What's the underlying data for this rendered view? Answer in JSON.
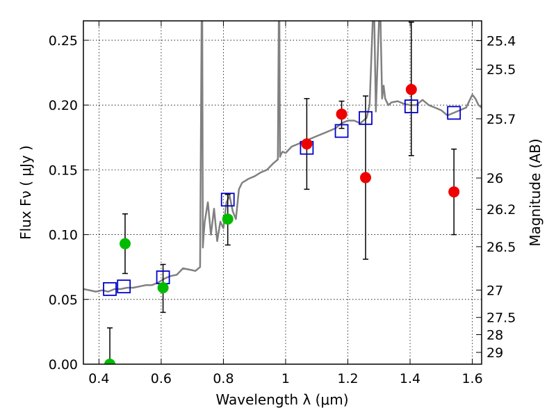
{
  "chart_data": {
    "type": "scatter",
    "title": "",
    "xlabel": "Wavelength  λ (μm)",
    "ylabel": "Flux  Fν  ( μJy )",
    "ylabel_right": "Magnitude (AB)",
    "xlim": [
      0.35,
      1.63
    ],
    "ylim": [
      0.0,
      0.265
    ],
    "grid": true,
    "x_ticks": [
      0.4,
      0.6,
      0.8,
      1.0,
      1.2,
      1.4,
      1.6
    ],
    "x_tick_labels": [
      "0.4",
      "0.6",
      "0.8",
      "1",
      "1.2",
      "1.4",
      "1.6"
    ],
    "y_ticks": [
      0.0,
      0.05,
      0.1,
      0.15,
      0.2,
      0.25
    ],
    "y_tick_labels": [
      "0.00",
      "0.05",
      "0.10",
      "0.15",
      "0.20",
      "0.25"
    ],
    "right_ticks": [
      {
        "label": "25.4",
        "flux": 0.2497
      },
      {
        "label": "25.5",
        "flux": 0.2277
      },
      {
        "label": "25.7",
        "flux": 0.1894
      },
      {
        "label": "26",
        "flux": 0.1437
      },
      {
        "label": "26.2",
        "flux": 0.1195
      },
      {
        "label": "26.5",
        "flux": 0.0907
      },
      {
        "label": "27",
        "flux": 0.0572
      },
      {
        "label": "27.5",
        "flux": 0.0361
      },
      {
        "label": "28",
        "flux": 0.0228
      },
      {
        "label": "29",
        "flux": 0.0091
      }
    ],
    "colors": {
      "spectrum": "#808080",
      "model_box": "#0000cc",
      "green_points": "#00bb00",
      "red_points": "#ee0000",
      "error_bar": "#000000"
    },
    "series": [
      {
        "name": "model spectrum",
        "type": "line",
        "x": [
          0.35,
          0.37,
          0.39,
          0.41,
          0.43,
          0.45,
          0.47,
          0.49,
          0.51,
          0.53,
          0.55,
          0.57,
          0.59,
          0.61,
          0.63,
          0.65,
          0.67,
          0.69,
          0.71,
          0.725,
          0.73,
          0.732,
          0.734,
          0.736,
          0.74,
          0.75,
          0.76,
          0.77,
          0.78,
          0.79,
          0.8,
          0.81,
          0.82,
          0.83,
          0.84,
          0.85,
          0.86,
          0.88,
          0.9,
          0.92,
          0.94,
          0.96,
          0.975,
          0.978,
          0.98,
          0.982,
          0.985,
          0.99,
          1.0,
          1.02,
          1.04,
          1.06,
          1.08,
          1.1,
          1.12,
          1.14,
          1.16,
          1.18,
          1.2,
          1.22,
          1.24,
          1.26,
          1.27,
          1.28,
          1.285,
          1.29,
          1.3,
          1.305,
          1.31,
          1.315,
          1.32,
          1.33,
          1.34,
          1.36,
          1.38,
          1.4,
          1.42,
          1.44,
          1.46,
          1.48,
          1.5,
          1.52,
          1.54,
          1.56,
          1.58,
          1.6,
          1.61,
          1.62,
          1.63
        ],
        "y": [
          0.058,
          0.057,
          0.056,
          0.057,
          0.056,
          0.058,
          0.058,
          0.059,
          0.059,
          0.06,
          0.061,
          0.061,
          0.063,
          0.066,
          0.068,
          0.069,
          0.074,
          0.073,
          0.072,
          0.075,
          0.265,
          0.265,
          0.09,
          0.098,
          0.11,
          0.125,
          0.1,
          0.12,
          0.095,
          0.11,
          0.105,
          0.125,
          0.13,
          0.118,
          0.112,
          0.135,
          0.14,
          0.143,
          0.145,
          0.148,
          0.15,
          0.155,
          0.158,
          0.265,
          0.265,
          0.16,
          0.162,
          0.164,
          0.163,
          0.168,
          0.17,
          0.172,
          0.174,
          0.176,
          0.178,
          0.18,
          0.182,
          0.186,
          0.188,
          0.188,
          0.186,
          0.19,
          0.2,
          0.265,
          0.265,
          0.195,
          0.265,
          0.265,
          0.205,
          0.215,
          0.205,
          0.2,
          0.202,
          0.203,
          0.201,
          0.2,
          0.2,
          0.204,
          0.2,
          0.198,
          0.196,
          0.192,
          0.194,
          0.196,
          0.198,
          0.208,
          0.205,
          0.2,
          0.198
        ]
      },
      {
        "name": "model photometry",
        "type": "box",
        "points": [
          [
            0.435,
            0.058
          ],
          [
            0.48,
            0.06
          ],
          [
            0.606,
            0.067
          ],
          [
            0.814,
            0.127
          ],
          [
            1.068,
            0.167
          ],
          [
            1.18,
            0.18
          ],
          [
            1.257,
            0.19
          ],
          [
            1.404,
            0.199
          ],
          [
            1.541,
            0.194
          ]
        ]
      },
      {
        "name": "observed (green)",
        "type": "errorbar",
        "points": [
          {
            "x": 0.435,
            "y": 0.0,
            "lo": 0.0,
            "hi": 0.028
          },
          {
            "x": 0.484,
            "y": 0.093,
            "lo": 0.07,
            "hi": 0.116
          },
          {
            "x": 0.606,
            "y": 0.059,
            "lo": 0.04,
            "hi": 0.077
          },
          {
            "x": 0.814,
            "y": 0.112,
            "lo": 0.092,
            "hi": 0.131
          }
        ]
      },
      {
        "name": "observed (red)",
        "type": "errorbar",
        "points": [
          {
            "x": 1.068,
            "y": 0.17,
            "lo": 0.135,
            "hi": 0.205
          },
          {
            "x": 1.18,
            "y": 0.193,
            "lo": 0.182,
            "hi": 0.203
          },
          {
            "x": 1.257,
            "y": 0.144,
            "lo": 0.081,
            "hi": 0.207
          },
          {
            "x": 1.404,
            "y": 0.212,
            "lo": 0.161,
            "hi": 0.264
          },
          {
            "x": 1.541,
            "y": 0.133,
            "lo": 0.1,
            "hi": 0.166
          }
        ]
      }
    ]
  }
}
